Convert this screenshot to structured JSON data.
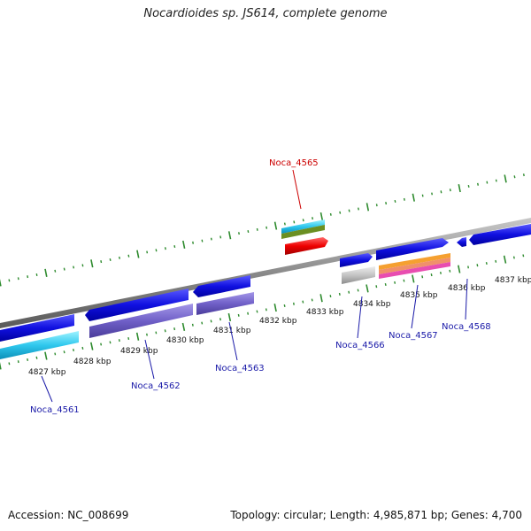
{
  "title": "Nocardioides sp. JS614, complete genome",
  "accession_text": "Accession: NC_008699",
  "summary_text": "Topology: circular; Length: 4,985,871 bp; Genes: 4,700",
  "colors": {
    "backbone": "#8a8a8a",
    "ticks": "#2e8b2e",
    "cds_forward": "#1414dc",
    "cds_reverse": "#1414dc",
    "highlight_label": "#cc0000",
    "gene_label": "#1a1aa8"
  },
  "scale_labels": [
    "4827 kbp",
    "4828 kbp",
    "4829 kbp",
    "4830 kbp",
    "4831 kbp",
    "4832 kbp",
    "4833 kbp",
    "4834 kbp",
    "4835 kbp",
    "4836 kbp",
    "4837 kbp"
  ],
  "gene_labels": {
    "noca_4565": "Noca_4565",
    "noca_4561": "Noca_4561",
    "noca_4562": "Noca_4562",
    "noca_4563": "Noca_4563",
    "noca_4566": "Noca_4566",
    "noca_4567": "Noca_4567",
    "noca_4568": "Noca_4568"
  }
}
